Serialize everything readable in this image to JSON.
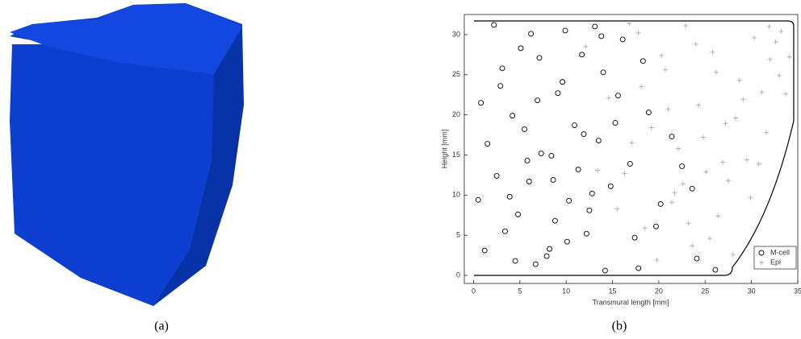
{
  "chart_data": {
    "type": "scatter",
    "xlabel": "Transmural length [mm]",
    "ylabel": "Height [mm]",
    "xlim": [
      -1,
      35
    ],
    "ylim": [
      -1,
      32.5
    ],
    "xticks": [
      0,
      5,
      10,
      15,
      20,
      25,
      30,
      35
    ],
    "yticks": [
      0,
      5,
      10,
      15,
      20,
      25,
      30
    ],
    "legend": "lower right",
    "series": [
      {
        "name": "M-cell",
        "color": "#000000",
        "marker": "circle",
        "x": [
          1.2,
          2.5,
          3.1,
          4.8,
          5.5,
          6.2,
          7.9,
          8.4,
          9.1,
          10.3,
          11.7,
          12.2,
          13.5,
          14.8,
          16.1,
          17.4,
          18.9,
          20.2,
          22.5,
          24.1,
          0.8,
          2.2,
          3.9,
          5.1,
          6.7,
          7.3,
          8.8,
          9.6,
          10.9,
          12.8,
          13.1,
          14.2,
          15.6,
          16.9,
          18.3,
          19.7,
          21.4,
          23.6,
          1.5,
          3.4,
          4.2,
          6.0,
          7.1,
          8.2,
          9.9,
          11.3,
          12.5,
          14.0,
          15.3,
          17.8,
          0.5,
          2.9,
          4.5,
          5.8,
          6.9,
          8.6,
          10.1,
          11.9,
          13.8,
          26.1
        ],
        "y": [
          3.1,
          12.4,
          25.8,
          7.6,
          18.2,
          30.1,
          2.4,
          14.9,
          22.7,
          9.3,
          27.5,
          5.2,
          16.8,
          11.1,
          29.4,
          4.7,
          20.3,
          8.9,
          13.6,
          2.1,
          21.5,
          31.2,
          9.8,
          28.3,
          1.4,
          15.2,
          6.8,
          24.1,
          18.7,
          10.2,
          31.0,
          0.6,
          22.4,
          13.9,
          26.7,
          6.1,
          17.3,
          10.8,
          16.4,
          5.5,
          19.9,
          11.7,
          27.1,
          3.3,
          30.5,
          13.2,
          8.1,
          25.3,
          19.0,
          0.9,
          9.4,
          23.6,
          1.8,
          14.3,
          21.8,
          11.9,
          4.2,
          17.6,
          29.8,
          0.7
        ]
      },
      {
        "name": "Epi",
        "color": "#aaaaaa",
        "marker": "plus",
        "x": [
          12.1,
          14.6,
          16.3,
          17.8,
          18.5,
          19.2,
          20.7,
          21.4,
          22.1,
          22.9,
          23.6,
          24.3,
          25.1,
          25.8,
          26.4,
          27.2,
          28.0,
          28.7,
          29.5,
          30.3,
          31.1,
          32.0,
          33.2,
          34.1,
          15.5,
          17.1,
          19.8,
          21.0,
          22.6,
          24.0,
          25.5,
          26.9,
          28.3,
          29.9,
          31.6,
          33.0,
          13.4,
          18.1,
          20.3,
          23.2,
          24.8,
          27.5,
          30.8,
          32.6,
          16.8,
          21.7,
          26.2,
          29.1,
          31.9,
          33.7
        ],
        "y": [
          28.5,
          22.1,
          12.7,
          30.2,
          5.9,
          18.4,
          25.6,
          9.1,
          15.8,
          31.1,
          3.7,
          21.2,
          12.9,
          27.8,
          7.4,
          18.9,
          2.6,
          24.3,
          14.4,
          29.6,
          22.8,
          26.9,
          30.4,
          27.2,
          8.3,
          16.5,
          1.9,
          20.7,
          11.4,
          28.8,
          4.6,
          14.1,
          19.6,
          9.7,
          17.8,
          24.9,
          13.1,
          23.5,
          27.4,
          6.5,
          17.2,
          11.8,
          13.9,
          29.1,
          31.4,
          10.3,
          25.3,
          21.9,
          31.0,
          22.6
        ]
      }
    ]
  },
  "captions": {
    "a": "(a)",
    "b": "(b)"
  }
}
